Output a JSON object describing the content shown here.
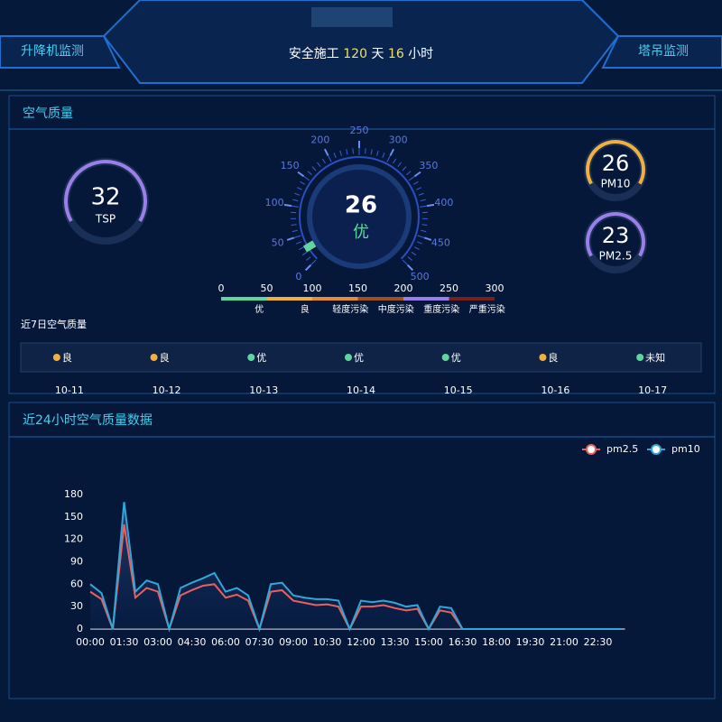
{
  "header": {
    "left_tab": "升降机监测",
    "right_tab": "塔吊监测",
    "safety": {
      "prefix": "安全施工",
      "days": 120,
      "day_unit": "天",
      "hours": 16,
      "hour_unit": "小时"
    }
  },
  "air_quality": {
    "title": "空气质量",
    "tsp": {
      "value": 32,
      "label": "TSP",
      "color": "#9b7fe8"
    },
    "aqi": {
      "value": 26,
      "level": "优",
      "ticks": [
        0,
        50,
        100,
        150,
        200,
        250,
        300,
        350,
        400,
        450,
        500
      ],
      "min": 0,
      "max": 500
    },
    "pm10": {
      "value": 26,
      "label": "PM10",
      "color": "#f0b040"
    },
    "pm25": {
      "value": 23,
      "label": "PM2.5",
      "color": "#9b7fe8"
    },
    "scale": {
      "ticks": [
        0,
        50,
        100,
        150,
        200,
        250,
        300
      ],
      "levels": [
        {
          "name": "优",
          "color": "#5fd6a0"
        },
        {
          "name": "良",
          "color": "#f0b040"
        },
        {
          "name": "轻度污染",
          "color": "#e88a30"
        },
        {
          "name": "中度污染",
          "color": "#a0501e"
        },
        {
          "name": "重度污染",
          "color": "#9b7fe8"
        },
        {
          "name": "严重污染",
          "color": "#7a1e1e"
        }
      ]
    },
    "week": {
      "title": "近7日空气质量",
      "days": [
        {
          "date": "10-11",
          "level": "良",
          "color": "#f0b040"
        },
        {
          "date": "10-12",
          "level": "良",
          "color": "#f0b040"
        },
        {
          "date": "10-13",
          "level": "优",
          "color": "#5fd6a0"
        },
        {
          "date": "10-14",
          "level": "优",
          "color": "#5fd6a0"
        },
        {
          "date": "10-15",
          "level": "优",
          "color": "#5fd6a0"
        },
        {
          "date": "10-16",
          "level": "良",
          "color": "#f0b040"
        },
        {
          "date": "10-17",
          "level": "未知",
          "color": "#5fd6a0"
        }
      ]
    }
  },
  "chart_data": {
    "type": "line",
    "title": "近24小时空气质量数据",
    "categories": [
      "00:00",
      null,
      null,
      "01:30",
      null,
      null,
      "03:00",
      null,
      null,
      "04:30",
      null,
      null,
      "06:00",
      null,
      null,
      "07:30",
      null,
      null,
      "09:00",
      null,
      null,
      "10:30",
      null,
      null,
      "12:00",
      null,
      null,
      "13:30",
      null,
      null,
      "15:00",
      null,
      null,
      "16:30",
      null,
      null,
      "18:00",
      null,
      null,
      "19:30",
      null,
      null,
      "21:00",
      null,
      null,
      "22:30",
      null,
      null
    ],
    "series": [
      {
        "name": "pm2.5",
        "color": "#e86060",
        "values": [
          50,
          40,
          0,
          140,
          42,
          55,
          50,
          0,
          45,
          52,
          58,
          60,
          42,
          46,
          38,
          0,
          50,
          52,
          38,
          35,
          32,
          33,
          30,
          0,
          30,
          30,
          32,
          28,
          25,
          27,
          0,
          25,
          22,
          0,
          0,
          0,
          0,
          0,
          0,
          0,
          0,
          0,
          0,
          0,
          0,
          0,
          0,
          0
        ]
      },
      {
        "name": "pm10",
        "color": "#2fa8d8",
        "values": [
          60,
          48,
          0,
          170,
          50,
          65,
          60,
          0,
          55,
          62,
          68,
          75,
          50,
          55,
          45,
          0,
          60,
          62,
          45,
          42,
          40,
          40,
          38,
          0,
          38,
          36,
          38,
          35,
          30,
          32,
          0,
          30,
          28,
          0,
          0,
          0,
          0,
          0,
          0,
          0,
          0,
          0,
          0,
          0,
          0,
          0,
          0,
          0
        ]
      }
    ],
    "ylim": [
      0,
      180
    ],
    "yticks": [
      0,
      30,
      60,
      90,
      120,
      150,
      180
    ],
    "grid": false,
    "legend": "top-right"
  }
}
